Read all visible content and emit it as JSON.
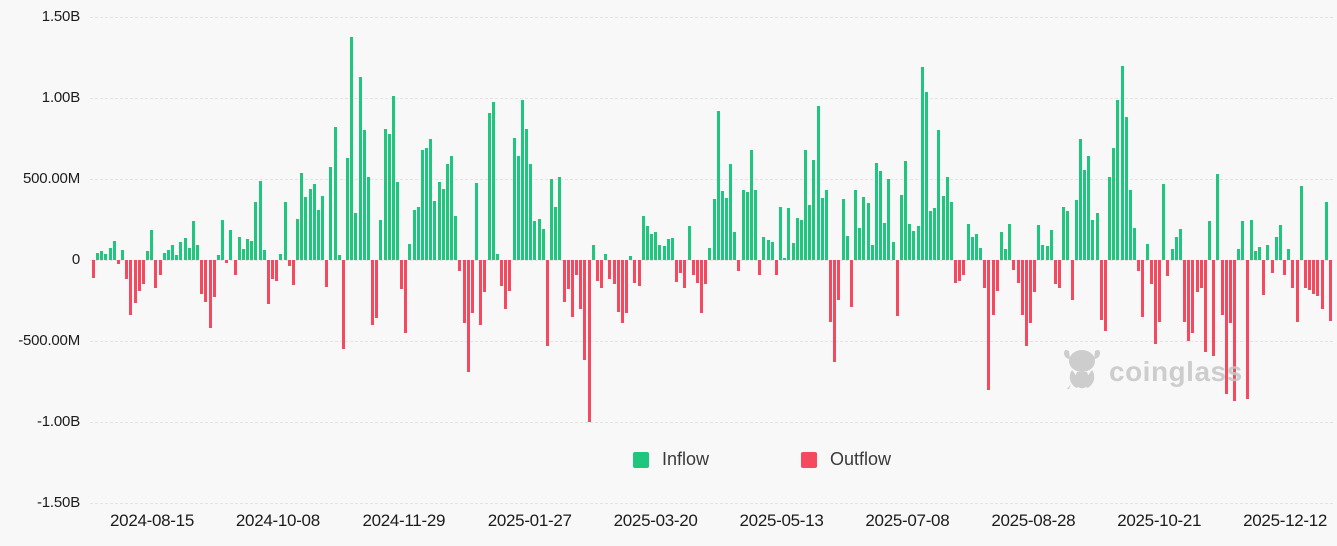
{
  "chart_data": {
    "type": "bar",
    "title": "",
    "xlabel": "",
    "ylabel": "",
    "unit": "USD",
    "values_unit": "millions",
    "ylim": [
      -1500,
      1500
    ],
    "grid": "horizontal-dashed",
    "legend_position": "bottom-center",
    "y_ticks": [
      {
        "label": "1.50B",
        "value": 1500
      },
      {
        "label": "1.00B",
        "value": 1000
      },
      {
        "label": "500.00M",
        "value": 500
      },
      {
        "label": "0",
        "value": 0
      },
      {
        "label": "-500.00M",
        "value": -500
      },
      {
        "label": "-1.00B",
        "value": -1000
      },
      {
        "label": "-1.50B",
        "value": -1500
      }
    ],
    "x_ticks": [
      "2024-08-15",
      "2024-10-08",
      "2024-11-29",
      "2025-01-27",
      "2025-03-20",
      "2025-05-13",
      "2025-07-08",
      "2025-08-28",
      "2025-10-21",
      "2025-12-12"
    ],
    "legend": [
      {
        "name": "Inflow",
        "color": "#1ec77d"
      },
      {
        "name": "Outflow",
        "color": "#f5495f"
      }
    ],
    "values_millions": [
      -110,
      45,
      55,
      35,
      75,
      120,
      -25,
      60,
      -115,
      -340,
      -265,
      -190,
      -150,
      55,
      185,
      -170,
      -95,
      45,
      60,
      90,
      30,
      110,
      135,
      75,
      240,
      95,
      -210,
      -260,
      -420,
      -230,
      30,
      250,
      -20,
      185,
      -90,
      140,
      70,
      130,
      115,
      355,
      490,
      60,
      -270,
      -115,
      -130,
      35,
      355,
      -40,
      -155,
      255,
      540,
      390,
      440,
      470,
      310,
      395,
      -165,
      575,
      820,
      30,
      -550,
      630,
      1375,
      290,
      1130,
      800,
      510,
      -400,
      -360,
      250,
      810,
      775,
      1010,
      480,
      -180,
      -450,
      100,
      310,
      330,
      680,
      690,
      745,
      365,
      480,
      440,
      590,
      640,
      270,
      -70,
      -390,
      -690,
      -330,
      475,
      -400,
      -200,
      910,
      975,
      35,
      -160,
      -300,
      -190,
      755,
      640,
      985,
      810,
      595,
      240,
      255,
      190,
      -530,
      500,
      330,
      515,
      -260,
      -180,
      -350,
      -90,
      -300,
      -620,
      -1000,
      90,
      -130,
      -175,
      35,
      -120,
      -150,
      -320,
      -390,
      -330,
      25,
      -145,
      -160,
      270,
      210,
      160,
      175,
      90,
      85,
      130,
      135,
      -135,
      -80,
      -175,
      210,
      -95,
      -145,
      -330,
      -150,
      75,
      375,
      920,
      425,
      380,
      595,
      170,
      -70,
      430,
      420,
      680,
      430,
      -90,
      140,
      125,
      110,
      -90,
      325,
      15,
      320,
      105,
      260,
      245,
      680,
      340,
      615,
      950,
      385,
      430,
      -380,
      -630,
      -245,
      375,
      150,
      -290,
      430,
      200,
      390,
      350,
      90,
      600,
      550,
      230,
      500,
      110,
      -345,
      400,
      610,
      220,
      180,
      210,
      1190,
      1040,
      300,
      320,
      800,
      395,
      510,
      355,
      -140,
      -130,
      -95,
      220,
      140,
      160,
      75,
      -170,
      -800,
      -340,
      -190,
      170,
      70,
      225,
      -60,
      -140,
      -340,
      -530,
      -390,
      -200,
      215,
      95,
      85,
      185,
      -150,
      -175,
      330,
      300,
      -245,
      370,
      745,
      555,
      640,
      250,
      290,
      -370,
      -440,
      510,
      690,
      990,
      1200,
      880,
      430,
      200,
      -70,
      -350,
      100,
      -150,
      -520,
      -380,
      470,
      -100,
      65,
      140,
      190,
      -385,
      -500,
      -450,
      -200,
      -175,
      -570,
      240,
      -590,
      530,
      -340,
      -825,
      -390,
      -870,
      70,
      240,
      -860,
      250,
      55,
      80,
      -215,
      90,
      -80,
      145,
      215,
      -95,
      70,
      -170,
      -385,
      455,
      -175,
      -185,
      -210,
      -225,
      -300,
      355,
      -375
    ]
  },
  "legend": {
    "inflow_label": "Inflow",
    "outflow_label": "Outflow"
  },
  "watermark": {
    "text": "coinglass"
  },
  "colors": {
    "inflow": "#1ec77d",
    "outflow": "#f5495f",
    "background": "#f8f8f8",
    "grid": "#e3e3e3",
    "text": "#1c1c1c",
    "watermark": "#c6c6c6"
  }
}
